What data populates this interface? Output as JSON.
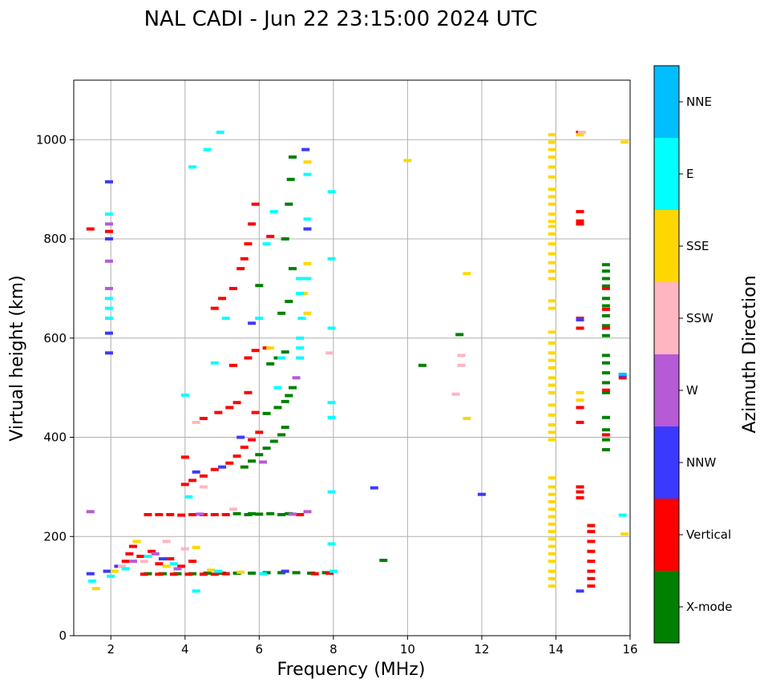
{
  "chart_data": {
    "type": "scatter",
    "title": "NAL CADI - Jun 22 23:15:00 2024 UTC",
    "xlabel": "Frequency (MHz)",
    "ylabel": "Virtual height (km)",
    "xlim": [
      1,
      16
    ],
    "ylim": [
      0,
      1120
    ],
    "xticks": [
      2,
      4,
      6,
      8,
      10,
      12,
      14,
      16
    ],
    "yticks": [
      0,
      200,
      400,
      600,
      800,
      1000
    ],
    "grid": true,
    "colorbar": {
      "label": "Azimuth Direction",
      "categories": [
        "X-mode",
        "Vertical",
        "NNW",
        "W",
        "SSW",
        "SSE",
        "E",
        "NNE"
      ],
      "colors": [
        "#008000",
        "#ff0000",
        "#3a3aff",
        "#b65ad6",
        "#ffb6c1",
        "#ffd700",
        "#00ffff",
        "#00bfff"
      ]
    },
    "series": [
      {
        "name": "X-mode",
        "points": [
          [
            3.0,
            125
          ],
          [
            3.4,
            125
          ],
          [
            3.8,
            125
          ],
          [
            4.2,
            125
          ],
          [
            4.6,
            126
          ],
          [
            5.0,
            126
          ],
          [
            5.4,
            126
          ],
          [
            5.8,
            126
          ],
          [
            6.2,
            127
          ],
          [
            6.6,
            127
          ],
          [
            7.0,
            127
          ],
          [
            7.4,
            126
          ],
          [
            7.8,
            127
          ],
          [
            5.4,
            246
          ],
          [
            5.8,
            246
          ],
          [
            6.0,
            245
          ],
          [
            6.3,
            246
          ],
          [
            6.6,
            244
          ],
          [
            6.8,
            246
          ],
          [
            5.7,
            244
          ],
          [
            5.6,
            340
          ],
          [
            5.8,
            352
          ],
          [
            6.0,
            365
          ],
          [
            6.2,
            378
          ],
          [
            6.4,
            392
          ],
          [
            6.6,
            405
          ],
          [
            6.7,
            420
          ],
          [
            6.2,
            448
          ],
          [
            6.5,
            460
          ],
          [
            6.7,
            472
          ],
          [
            6.8,
            484
          ],
          [
            6.9,
            500
          ],
          [
            6.3,
            548
          ],
          [
            6.5,
            560
          ],
          [
            6.7,
            572
          ],
          [
            6.6,
            650
          ],
          [
            6.8,
            674
          ],
          [
            6.0,
            706
          ],
          [
            6.9,
            740
          ],
          [
            6.7,
            800
          ],
          [
            6.8,
            870
          ],
          [
            6.85,
            920
          ],
          [
            6.9,
            965
          ],
          [
            15.35,
            375
          ],
          [
            15.35,
            395
          ],
          [
            15.35,
            415
          ],
          [
            15.35,
            440
          ],
          [
            15.35,
            490
          ],
          [
            15.35,
            510
          ],
          [
            15.35,
            530
          ],
          [
            15.35,
            550
          ],
          [
            15.35,
            565
          ],
          [
            15.35,
            605
          ],
          [
            15.35,
            625
          ],
          [
            15.35,
            645
          ],
          [
            15.35,
            665
          ],
          [
            15.35,
            680
          ],
          [
            15.35,
            705
          ],
          [
            15.35,
            720
          ],
          [
            15.35,
            735
          ],
          [
            15.35,
            748
          ],
          [
            9.35,
            152
          ],
          [
            10.4,
            545
          ],
          [
            11.4,
            607
          ]
        ]
      },
      {
        "name": "Vertical",
        "points": [
          [
            2.9,
            124
          ],
          [
            3.3,
            124
          ],
          [
            3.7,
            124
          ],
          [
            4.1,
            124
          ],
          [
            4.5,
            124
          ],
          [
            4.8,
            124
          ],
          [
            5.1,
            125
          ],
          [
            7.5,
            125
          ],
          [
            7.9,
            126
          ],
          [
            3.0,
            244
          ],
          [
            3.3,
            244
          ],
          [
            3.6,
            244
          ],
          [
            3.9,
            243
          ],
          [
            4.2,
            244
          ],
          [
            4.5,
            244
          ],
          [
            4.8,
            244
          ],
          [
            5.1,
            244
          ],
          [
            7.1,
            244
          ],
          [
            2.4,
            150
          ],
          [
            2.5,
            165
          ],
          [
            2.6,
            180
          ],
          [
            2.8,
            160
          ],
          [
            3.1,
            170
          ],
          [
            3.3,
            145
          ],
          [
            3.6,
            155
          ],
          [
            3.9,
            140
          ],
          [
            4.2,
            150
          ],
          [
            4.0,
            305
          ],
          [
            4.2,
            313
          ],
          [
            4.5,
            322
          ],
          [
            4.8,
            335
          ],
          [
            5.2,
            348
          ],
          [
            5.4,
            362
          ],
          [
            5.6,
            380
          ],
          [
            5.8,
            395
          ],
          [
            6.0,
            410
          ],
          [
            4.0,
            360
          ],
          [
            4.5,
            438
          ],
          [
            4.9,
            450
          ],
          [
            5.2,
            460
          ],
          [
            5.4,
            470
          ],
          [
            5.7,
            490
          ],
          [
            5.9,
            450
          ],
          [
            5.3,
            545
          ],
          [
            5.7,
            560
          ],
          [
            5.9,
            575
          ],
          [
            6.2,
            580
          ],
          [
            4.8,
            660
          ],
          [
            5.0,
            680
          ],
          [
            5.3,
            700
          ],
          [
            5.5,
            740
          ],
          [
            5.6,
            760
          ],
          [
            5.7,
            790
          ],
          [
            5.8,
            830
          ],
          [
            5.9,
            870
          ],
          [
            6.3,
            805
          ],
          [
            1.45,
            820
          ],
          [
            1.95,
            815
          ],
          [
            14.65,
            278
          ],
          [
            14.65,
            290
          ],
          [
            14.65,
            300
          ],
          [
            14.65,
            430
          ],
          [
            14.65,
            460
          ],
          [
            14.65,
            620
          ],
          [
            14.65,
            640
          ],
          [
            14.65,
            830
          ],
          [
            14.65,
            836
          ],
          [
            14.65,
            855
          ],
          [
            14.65,
            1015
          ],
          [
            14.95,
            100
          ],
          [
            14.95,
            115
          ],
          [
            14.95,
            130
          ],
          [
            14.95,
            150
          ],
          [
            14.95,
            170
          ],
          [
            14.95,
            190
          ],
          [
            14.95,
            210
          ],
          [
            14.95,
            222
          ],
          [
            15.35,
            405
          ],
          [
            15.35,
            495
          ],
          [
            15.35,
            620
          ],
          [
            15.35,
            658
          ],
          [
            15.35,
            700
          ],
          [
            15.8,
            520
          ]
        ]
      },
      {
        "name": "NNW",
        "points": [
          [
            1.45,
            125
          ],
          [
            1.9,
            130
          ],
          [
            2.2,
            140
          ],
          [
            3.4,
            155
          ],
          [
            4.3,
            330
          ],
          [
            5.0,
            340
          ],
          [
            5.5,
            400
          ],
          [
            5.8,
            630
          ],
          [
            6.7,
            130
          ],
          [
            7.3,
            820
          ],
          [
            7.25,
            980
          ],
          [
            1.95,
            610
          ],
          [
            1.95,
            800
          ],
          [
            1.95,
            570
          ],
          [
            1.95,
            915
          ],
          [
            9.1,
            298
          ],
          [
            12.0,
            285
          ],
          [
            14.65,
            90
          ],
          [
            14.65,
            637
          ],
          [
            15.8,
            525
          ]
        ]
      },
      {
        "name": "W",
        "points": [
          [
            2.6,
            150
          ],
          [
            3.2,
            165
          ],
          [
            3.8,
            135
          ],
          [
            4.4,
            245
          ],
          [
            6.1,
            350
          ],
          [
            6.9,
            245
          ],
          [
            7.3,
            250
          ],
          [
            7.0,
            520
          ],
          [
            1.95,
            755
          ],
          [
            1.95,
            700
          ],
          [
            1.95,
            830
          ],
          [
            1.45,
            250
          ]
        ]
      },
      {
        "name": "SSW",
        "points": [
          [
            2.3,
            140
          ],
          [
            2.9,
            150
          ],
          [
            3.5,
            190
          ],
          [
            4.0,
            175
          ],
          [
            4.5,
            300
          ],
          [
            5.3,
            255
          ],
          [
            4.3,
            430
          ],
          [
            7.9,
            570
          ],
          [
            11.3,
            487
          ],
          [
            11.45,
            565
          ],
          [
            11.45,
            545
          ],
          [
            14.7,
            1015
          ]
        ]
      },
      {
        "name": "SSE",
        "points": [
          [
            1.6,
            95
          ],
          [
            2.1,
            130
          ],
          [
            2.7,
            190
          ],
          [
            3.5,
            140
          ],
          [
            4.3,
            178
          ],
          [
            4.7,
            132
          ],
          [
            5.5,
            128
          ],
          [
            6.3,
            580
          ],
          [
            7.2,
            690
          ],
          [
            7.3,
            955
          ],
          [
            7.3,
            750
          ],
          [
            7.3,
            650
          ],
          [
            10.0,
            958
          ],
          [
            11.6,
            730
          ],
          [
            11.6,
            438
          ],
          [
            13.9,
            100
          ],
          [
            13.9,
            115
          ],
          [
            13.9,
            130
          ],
          [
            13.9,
            150
          ],
          [
            13.9,
            165
          ],
          [
            13.9,
            180
          ],
          [
            13.9,
            195
          ],
          [
            13.9,
            210
          ],
          [
            13.9,
            225
          ],
          [
            13.9,
            240
          ],
          [
            13.9,
            255
          ],
          [
            13.9,
            270
          ],
          [
            13.9,
            285
          ],
          [
            13.9,
            300
          ],
          [
            13.9,
            318
          ],
          [
            13.9,
            395
          ],
          [
            13.9,
            410
          ],
          [
            13.9,
            425
          ],
          [
            13.9,
            445
          ],
          [
            13.9,
            465
          ],
          [
            13.9,
            490
          ],
          [
            13.9,
            505
          ],
          [
            13.9,
            520
          ],
          [
            13.9,
            540
          ],
          [
            13.9,
            555
          ],
          [
            13.9,
            570
          ],
          [
            13.9,
            590
          ],
          [
            13.9,
            612
          ],
          [
            13.9,
            660
          ],
          [
            13.9,
            675
          ],
          [
            13.9,
            720
          ],
          [
            13.9,
            735
          ],
          [
            13.9,
            752
          ],
          [
            13.9,
            770
          ],
          [
            13.9,
            790
          ],
          [
            13.9,
            810
          ],
          [
            13.9,
            825
          ],
          [
            13.9,
            835
          ],
          [
            13.9,
            850
          ],
          [
            13.9,
            870
          ],
          [
            13.9,
            885
          ],
          [
            13.9,
            900
          ],
          [
            13.9,
            925
          ],
          [
            13.9,
            945
          ],
          [
            13.9,
            965
          ],
          [
            13.9,
            980
          ],
          [
            13.9,
            995
          ],
          [
            13.9,
            1010
          ],
          [
            14.65,
            475
          ],
          [
            14.65,
            490
          ],
          [
            14.65,
            1010
          ],
          [
            15.85,
            205
          ],
          [
            15.85,
            995
          ]
        ]
      },
      {
        "name": "E",
        "points": [
          [
            1.5,
            110
          ],
          [
            2.0,
            120
          ],
          [
            2.4,
            135
          ],
          [
            3.0,
            160
          ],
          [
            3.7,
            145
          ],
          [
            4.3,
            90
          ],
          [
            4.9,
            130
          ],
          [
            6.1,
            125
          ],
          [
            8.0,
            130
          ],
          [
            4.0,
            485
          ],
          [
            4.2,
            945
          ],
          [
            4.6,
            980
          ],
          [
            4.95,
            1015
          ],
          [
            4.8,
            550
          ],
          [
            5.1,
            640
          ],
          [
            6.0,
            640
          ],
          [
            6.2,
            790
          ],
          [
            6.4,
            855
          ],
          [
            6.5,
            500
          ],
          [
            6.6,
            560
          ],
          [
            7.1,
            560
          ],
          [
            7.1,
            580
          ],
          [
            7.1,
            600
          ],
          [
            7.15,
            640
          ],
          [
            7.1,
            690
          ],
          [
            7.1,
            720
          ],
          [
            7.3,
            720
          ],
          [
            7.3,
            930
          ],
          [
            7.3,
            840
          ],
          [
            7.95,
            185
          ],
          [
            7.95,
            290
          ],
          [
            7.95,
            440
          ],
          [
            7.95,
            470
          ],
          [
            7.95,
            620
          ],
          [
            7.95,
            760
          ],
          [
            7.95,
            895
          ],
          [
            1.95,
            640
          ],
          [
            1.95,
            660
          ],
          [
            1.95,
            680
          ],
          [
            1.95,
            850
          ],
          [
            4.1,
            280
          ],
          [
            15.8,
            243
          ]
        ]
      },
      {
        "name": "NNE",
        "points": [
          [
            15.8,
            527
          ]
        ]
      }
    ]
  }
}
